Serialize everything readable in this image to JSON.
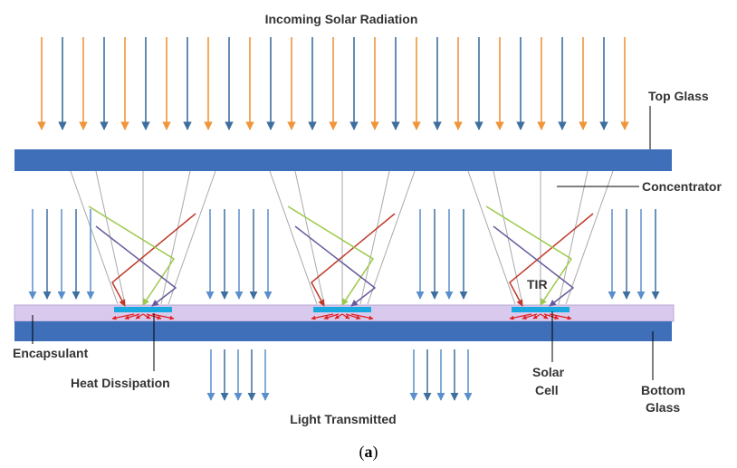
{
  "labels": {
    "incoming_solar_radiation": "Incoming Solar Radiation",
    "top_glass": "Top Glass",
    "concentrator": "Concentrator",
    "encapsulant": "Encapsulant",
    "heat_dissipation": "Heat Dissipation",
    "tir": "TIR",
    "solar_cell_line1": "Solar",
    "solar_cell_line2": "Cell",
    "bottom_glass_line1": "Bottom",
    "bottom_glass_line2": "Glass",
    "light_transmitted": "Light Transmitted"
  },
  "caption": {
    "open": "(",
    "letter": "a",
    "close": ")"
  },
  "colors": {
    "glass": "#3e6fb8",
    "encapsulant": "#d9c9ec",
    "solar_cell": "#19a8e0",
    "ray_orange": "#f0953a",
    "ray_blue": "#3d6f9f",
    "ray_light_blue": "#5b8fcb",
    "reflect_red": "#c0392b",
    "reflect_green": "#9cc94a",
    "reflect_purple": "#6a5a9c",
    "heat_red": "#e02020",
    "concentrator_line": "#a9a9a9"
  }
}
